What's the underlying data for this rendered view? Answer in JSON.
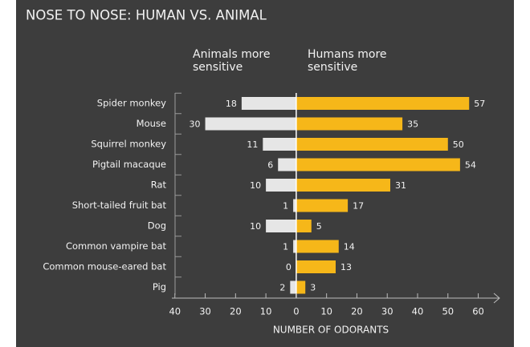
{
  "chart_data": {
    "type": "diverging-bar",
    "title": "NOSE TO NOSE: HUMAN VS. ANIMAL",
    "x_label": "NUMBER OF ODORANTS",
    "categories": [
      "Spider monkey",
      "Mouse",
      "Squirrel monkey",
      "Pigtail macaque",
      "Rat",
      "Short-tailed fruit bat",
      "Dog",
      "Common vampire bat",
      "Common mouse-eared bat",
      "Pig"
    ],
    "series": [
      {
        "name": "Animals more sensitive",
        "color": "#e6e6e6",
        "side": "left",
        "values": [
          18,
          30,
          11,
          6,
          10,
          1,
          10,
          1,
          0,
          2
        ]
      },
      {
        "name": "Humans more sensitive",
        "color": "#f6b719",
        "side": "right",
        "values": [
          57,
          35,
          50,
          54,
          31,
          17,
          5,
          14,
          13,
          3
        ]
      }
    ],
    "xlim": [
      -41,
      67
    ],
    "xticks": [
      {
        "value": -40,
        "label": "40"
      },
      {
        "value": -30,
        "label": "30"
      },
      {
        "value": -20,
        "label": "20"
      },
      {
        "value": -10,
        "label": "10"
      },
      0,
      10,
      20,
      30,
      40,
      50,
      60
    ]
  }
}
